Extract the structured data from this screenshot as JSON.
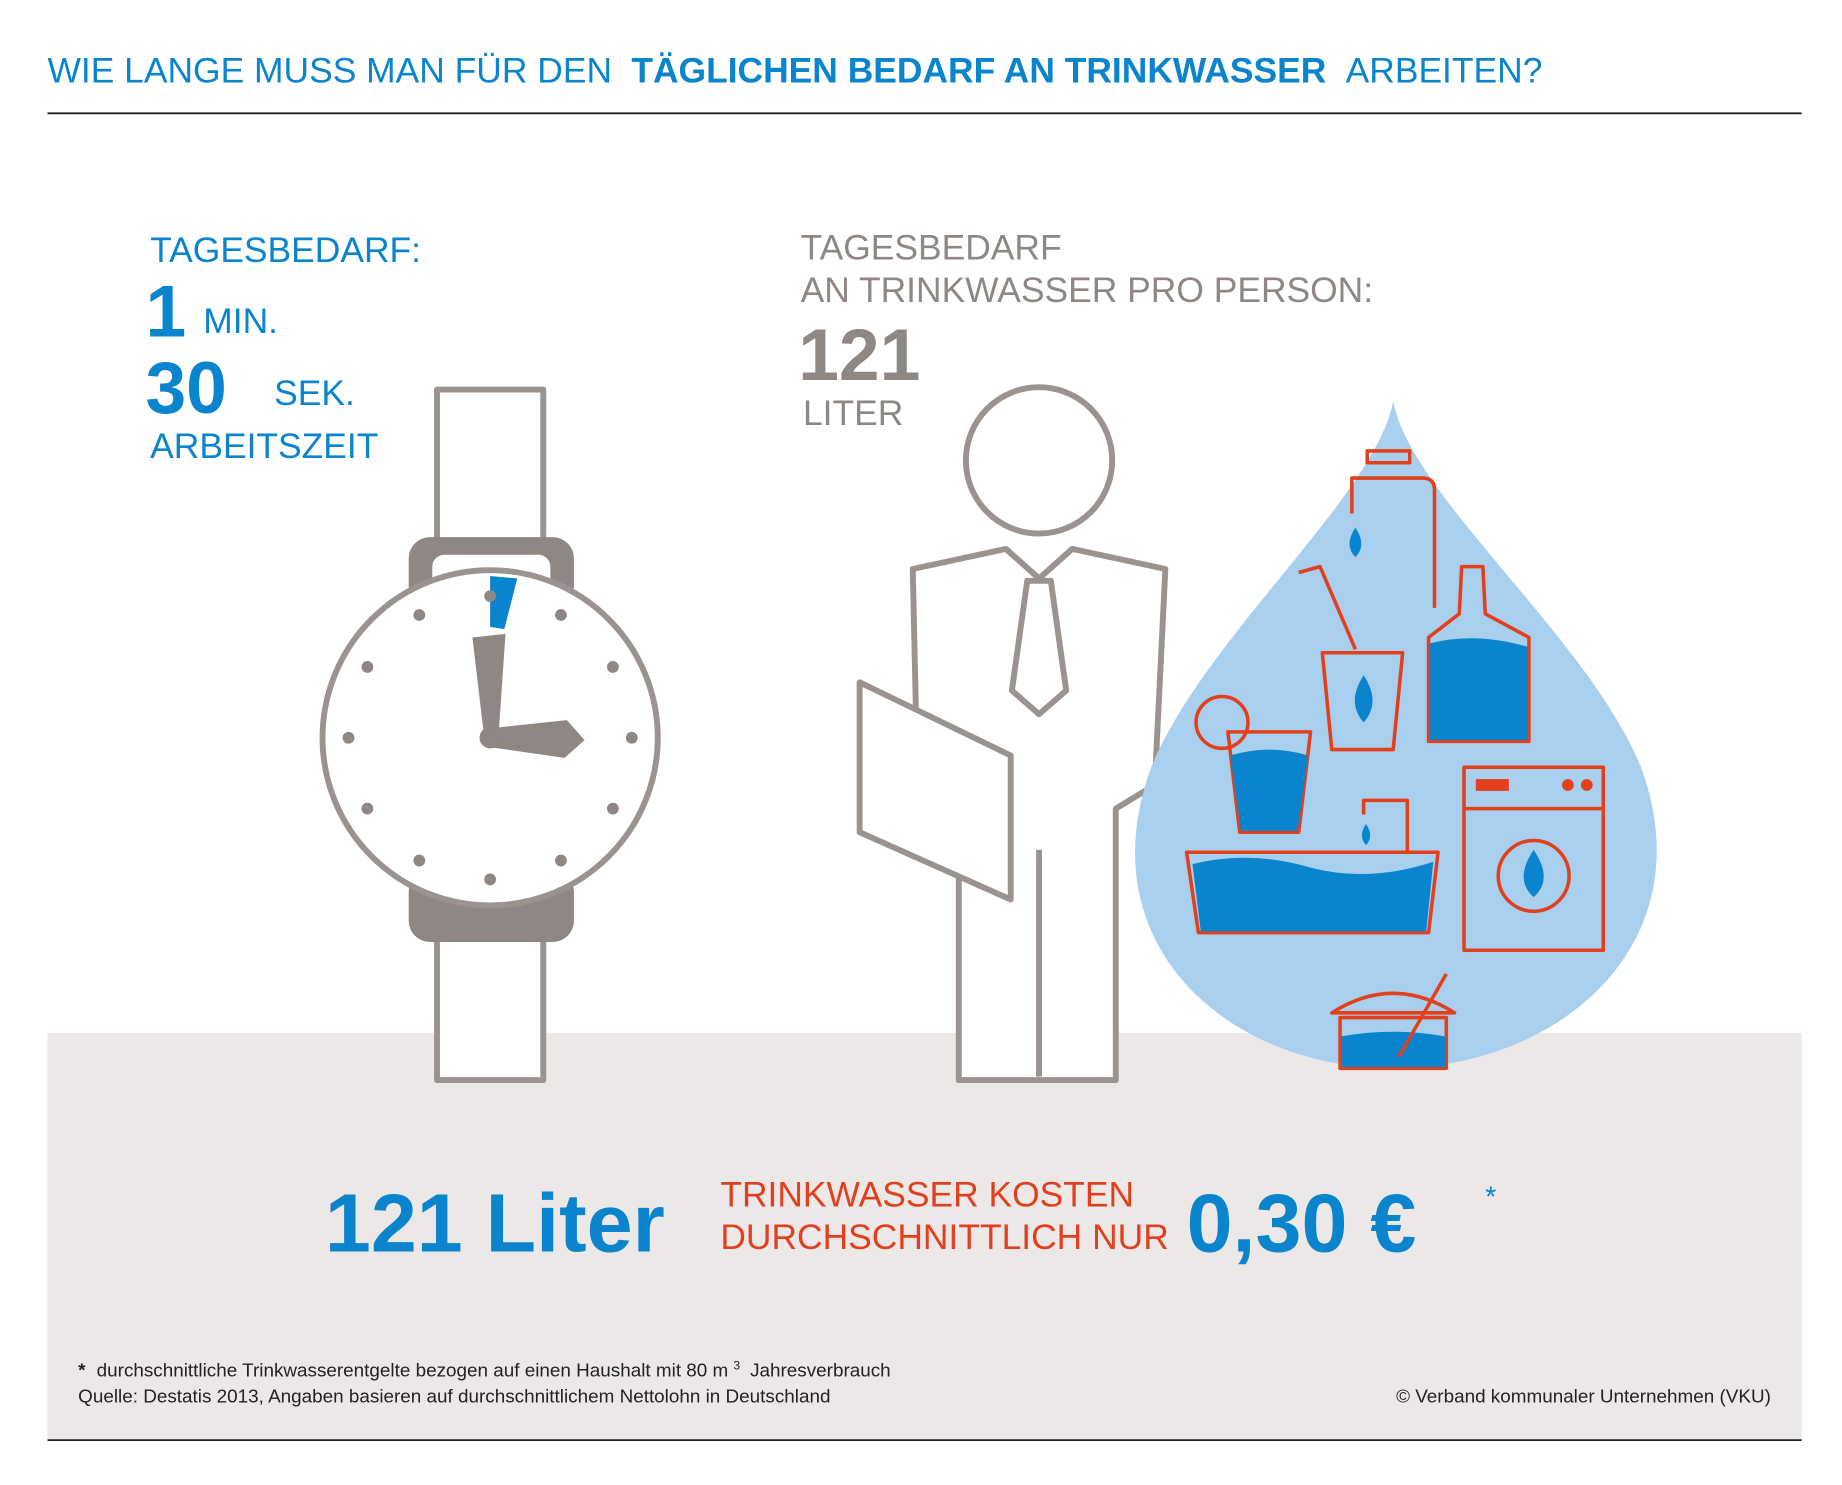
{
  "header": {
    "title": [
      "WIE LANGE MUSS MAN FÜR DEN",
      "TÄGLICHEN BEDARF AN TRINKWASSER",
      "ARBEITEN?"
    ]
  },
  "work_time": {
    "label": "TAGESBEDARF:",
    "minutes": 1,
    "minutes_unit": "MIN.",
    "seconds": 30,
    "seconds_unit": "SEK.",
    "caption": "ARBEITSZEIT"
  },
  "water": {
    "label_lines": [
      "TAGESBEDARF",
      "AN TRINKWASSER PRO PERSON:"
    ],
    "amount": 121,
    "unit": "LITER"
  },
  "summary": {
    "amount": "121 Liter",
    "text_lines": [
      "TRINKWASSER KOSTEN",
      "DURCHSCHNITTLICH NUR"
    ],
    "price": "0,30 €",
    "price_marker": "*"
  },
  "footer": {
    "note_marker": "*",
    "note": [
      "durchschnittliche Trinkwasserentgelte bezogen auf einen Haushalt mit 80 m",
      "3",
      "Jahresverbrauch"
    ],
    "source": "Quelle: Destatis 2013, Angaben basieren auf durchschnittlichem Nettolohn in Deutschland",
    "copyright": "© Verband kommunaler Unternehmen (VKU)"
  }
}
